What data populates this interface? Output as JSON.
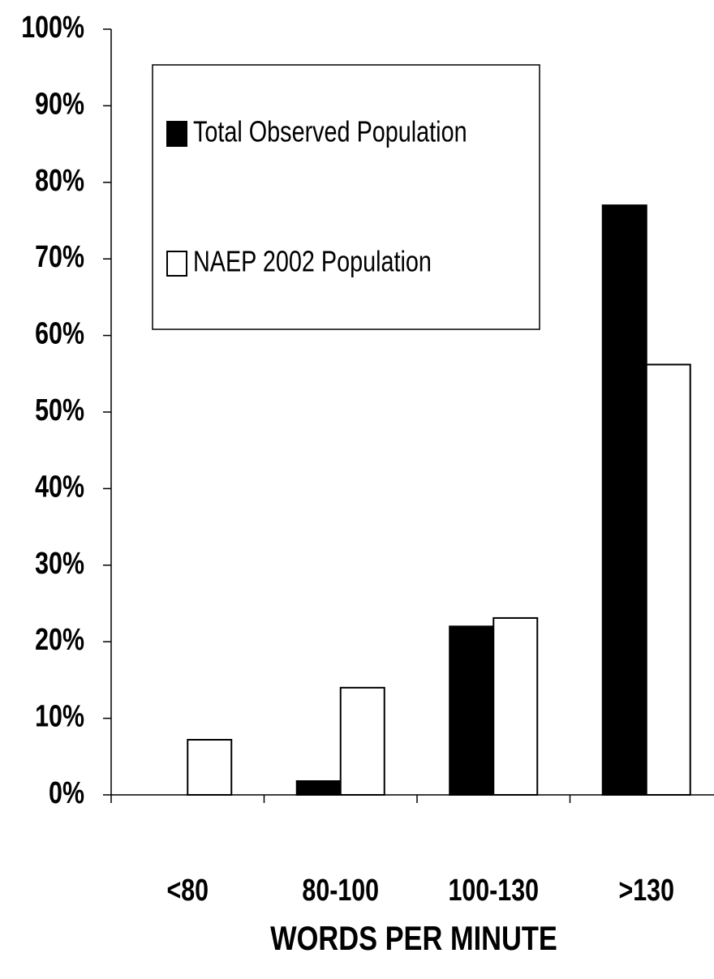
{
  "chart_data": {
    "type": "bar",
    "xlabel": "WORDS PER MINUTE",
    "categories": [
      "<80",
      "80-100",
      "100-130",
      ">130"
    ],
    "series": [
      {
        "name": "Total Observed Population",
        "color": "#000000",
        "values": [
          0,
          1.8,
          22.0,
          77.0
        ]
      },
      {
        "name": "NAEP 2002 Population",
        "color": "#ffffff",
        "values": [
          7.2,
          14.0,
          23.1,
          56.2
        ]
      }
    ],
    "ylim": [
      0,
      100
    ],
    "yticks": [
      {
        "value": 0,
        "label": "0%"
      },
      {
        "value": 10,
        "label": "10%"
      },
      {
        "value": 20,
        "label": "20%"
      },
      {
        "value": 30,
        "label": "30%"
      },
      {
        "value": 40,
        "label": "40%"
      },
      {
        "value": 50,
        "label": "50%"
      },
      {
        "value": 60,
        "label": "60%"
      },
      {
        "value": 70,
        "label": "70%"
      },
      {
        "value": 80,
        "label": "80%"
      },
      {
        "value": 90,
        "label": "90%"
      },
      {
        "value": 100,
        "label": "100%"
      }
    ],
    "grid": false
  }
}
